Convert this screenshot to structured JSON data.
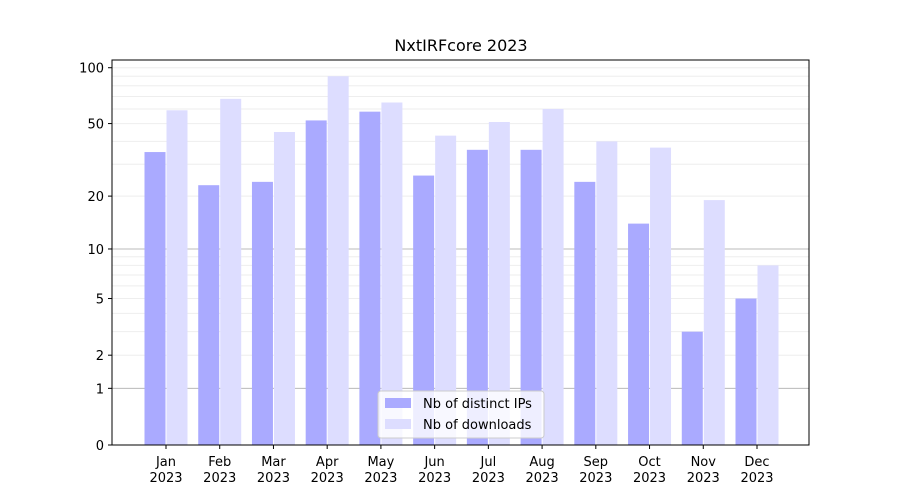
{
  "chart_data": {
    "type": "bar",
    "title": "NxtIRFcore 2023",
    "xlabel": "",
    "ylabel": "",
    "y_scale": "log(1+y)",
    "ylim": [
      0,
      110
    ],
    "y_ticks": [
      0,
      1,
      2,
      5,
      10,
      20,
      50,
      100
    ],
    "categories": [
      "Jan\n2023",
      "Feb\n2023",
      "Mar\n2023",
      "Apr\n2023",
      "May\n2023",
      "Jun\n2023",
      "Jul\n2023",
      "Aug\n2023",
      "Sep\n2023",
      "Oct\n2023",
      "Nov\n2023",
      "Dec\n2023"
    ],
    "series": [
      {
        "name": "Nb of distinct IPs",
        "color": "#aaaaff",
        "values": [
          35,
          23,
          24,
          52,
          58,
          26,
          36,
          36,
          24,
          14,
          3,
          5
        ]
      },
      {
        "name": "Nb of downloads",
        "color": "#ddddff",
        "values": [
          59,
          68,
          45,
          90,
          65,
          43,
          51,
          60,
          40,
          37,
          19,
          8
        ]
      }
    ],
    "grid": true,
    "legend_position": "bottom-center"
  }
}
